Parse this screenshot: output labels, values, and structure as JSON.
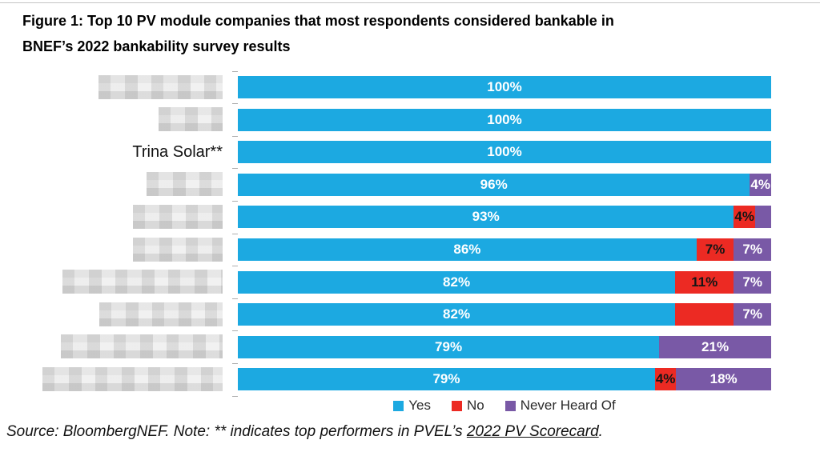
{
  "title": {
    "line1": "Figure 1:  Top 10 PV module companies that most respondents considered bankable in",
    "line2": "BNEF’s 2022 bankability survey results"
  },
  "footer": {
    "prefix": "Source: BloombergNEF. Note: ** indicates top performers in PVEL’s ",
    "link_text": "2022 PV Scorecard",
    "suffix": "."
  },
  "chart_data": {
    "type": "bar",
    "orientation": "horizontal-stacked",
    "title": "Top 10 PV module companies that most respondents considered bankable in BNEF’s 2022 bankability survey results",
    "xlim": [
      0,
      100
    ],
    "grid": false,
    "legend_position": "bottom-center",
    "legend": [
      {
        "label": "Yes",
        "color": "#1CA9E1"
      },
      {
        "label": "No",
        "color": "#EC2A23"
      },
      {
        "label": "Never Heard Of",
        "color": "#7959A6"
      }
    ],
    "series_colors": {
      "Yes": "#1CA9E1",
      "No": "#EC2A23",
      "Never Heard Of": "#7959A6"
    },
    "categories": [
      "(redacted)",
      "(redacted)",
      "Trina Solar**",
      "(redacted)",
      "(redacted)",
      "(redacted)",
      "(redacted)",
      "(redacted)",
      "(redacted)",
      "(redacted)"
    ],
    "rows": [
      {
        "company": "",
        "redacted": true,
        "label_width": 155,
        "segments": [
          {
            "series": "Yes",
            "value": 100,
            "label": "100%"
          }
        ]
      },
      {
        "company": "",
        "redacted": true,
        "label_width": 80,
        "segments": [
          {
            "series": "Yes",
            "value": 100,
            "label": "100%"
          }
        ]
      },
      {
        "company": "Trina Solar**",
        "redacted": false,
        "label_width": 0,
        "segments": [
          {
            "series": "Yes",
            "value": 100,
            "label": "100%"
          }
        ]
      },
      {
        "company": "",
        "redacted": true,
        "label_width": 95,
        "segments": [
          {
            "series": "Yes",
            "value": 96,
            "label": "96%"
          },
          {
            "series": "Never Heard Of",
            "value": 4,
            "label": "4%"
          }
        ]
      },
      {
        "company": "",
        "redacted": true,
        "label_width": 112,
        "segments": [
          {
            "series": "Yes",
            "value": 93,
            "label": "93%"
          },
          {
            "series": "No",
            "value": 4,
            "label": "4%"
          },
          {
            "series": "Never Heard Of",
            "value": 3,
            "label": ""
          }
        ]
      },
      {
        "company": "",
        "redacted": true,
        "label_width": 112,
        "segments": [
          {
            "series": "Yes",
            "value": 86,
            "label": "86%"
          },
          {
            "series": "No",
            "value": 7,
            "label": "7%"
          },
          {
            "series": "Never Heard Of",
            "value": 7,
            "label": "7%"
          }
        ]
      },
      {
        "company": "",
        "redacted": true,
        "label_width": 200,
        "segments": [
          {
            "series": "Yes",
            "value": 82,
            "label": "82%"
          },
          {
            "series": "No",
            "value": 11,
            "label": "11%"
          },
          {
            "series": "Never Heard Of",
            "value": 7,
            "label": "7%"
          }
        ]
      },
      {
        "company": "",
        "redacted": true,
        "label_width": 154,
        "segments": [
          {
            "series": "Yes",
            "value": 82,
            "label": "82%"
          },
          {
            "series": "No",
            "value": 11,
            "label": ""
          },
          {
            "series": "Never Heard Of",
            "value": 7,
            "label": "7%"
          }
        ]
      },
      {
        "company": "",
        "redacted": true,
        "label_width": 202,
        "segments": [
          {
            "series": "Yes",
            "value": 79,
            "label": "79%"
          },
          {
            "series": "Never Heard Of",
            "value": 21,
            "label": "21%"
          }
        ]
      },
      {
        "company": "",
        "redacted": true,
        "label_width": 225,
        "segments": [
          {
            "series": "Yes",
            "value": 79,
            "label": "79%"
          },
          {
            "series": "No",
            "value": 4,
            "label": "4%"
          },
          {
            "series": "Never Heard Of",
            "value": 18,
            "label": "18%"
          }
        ]
      }
    ]
  }
}
